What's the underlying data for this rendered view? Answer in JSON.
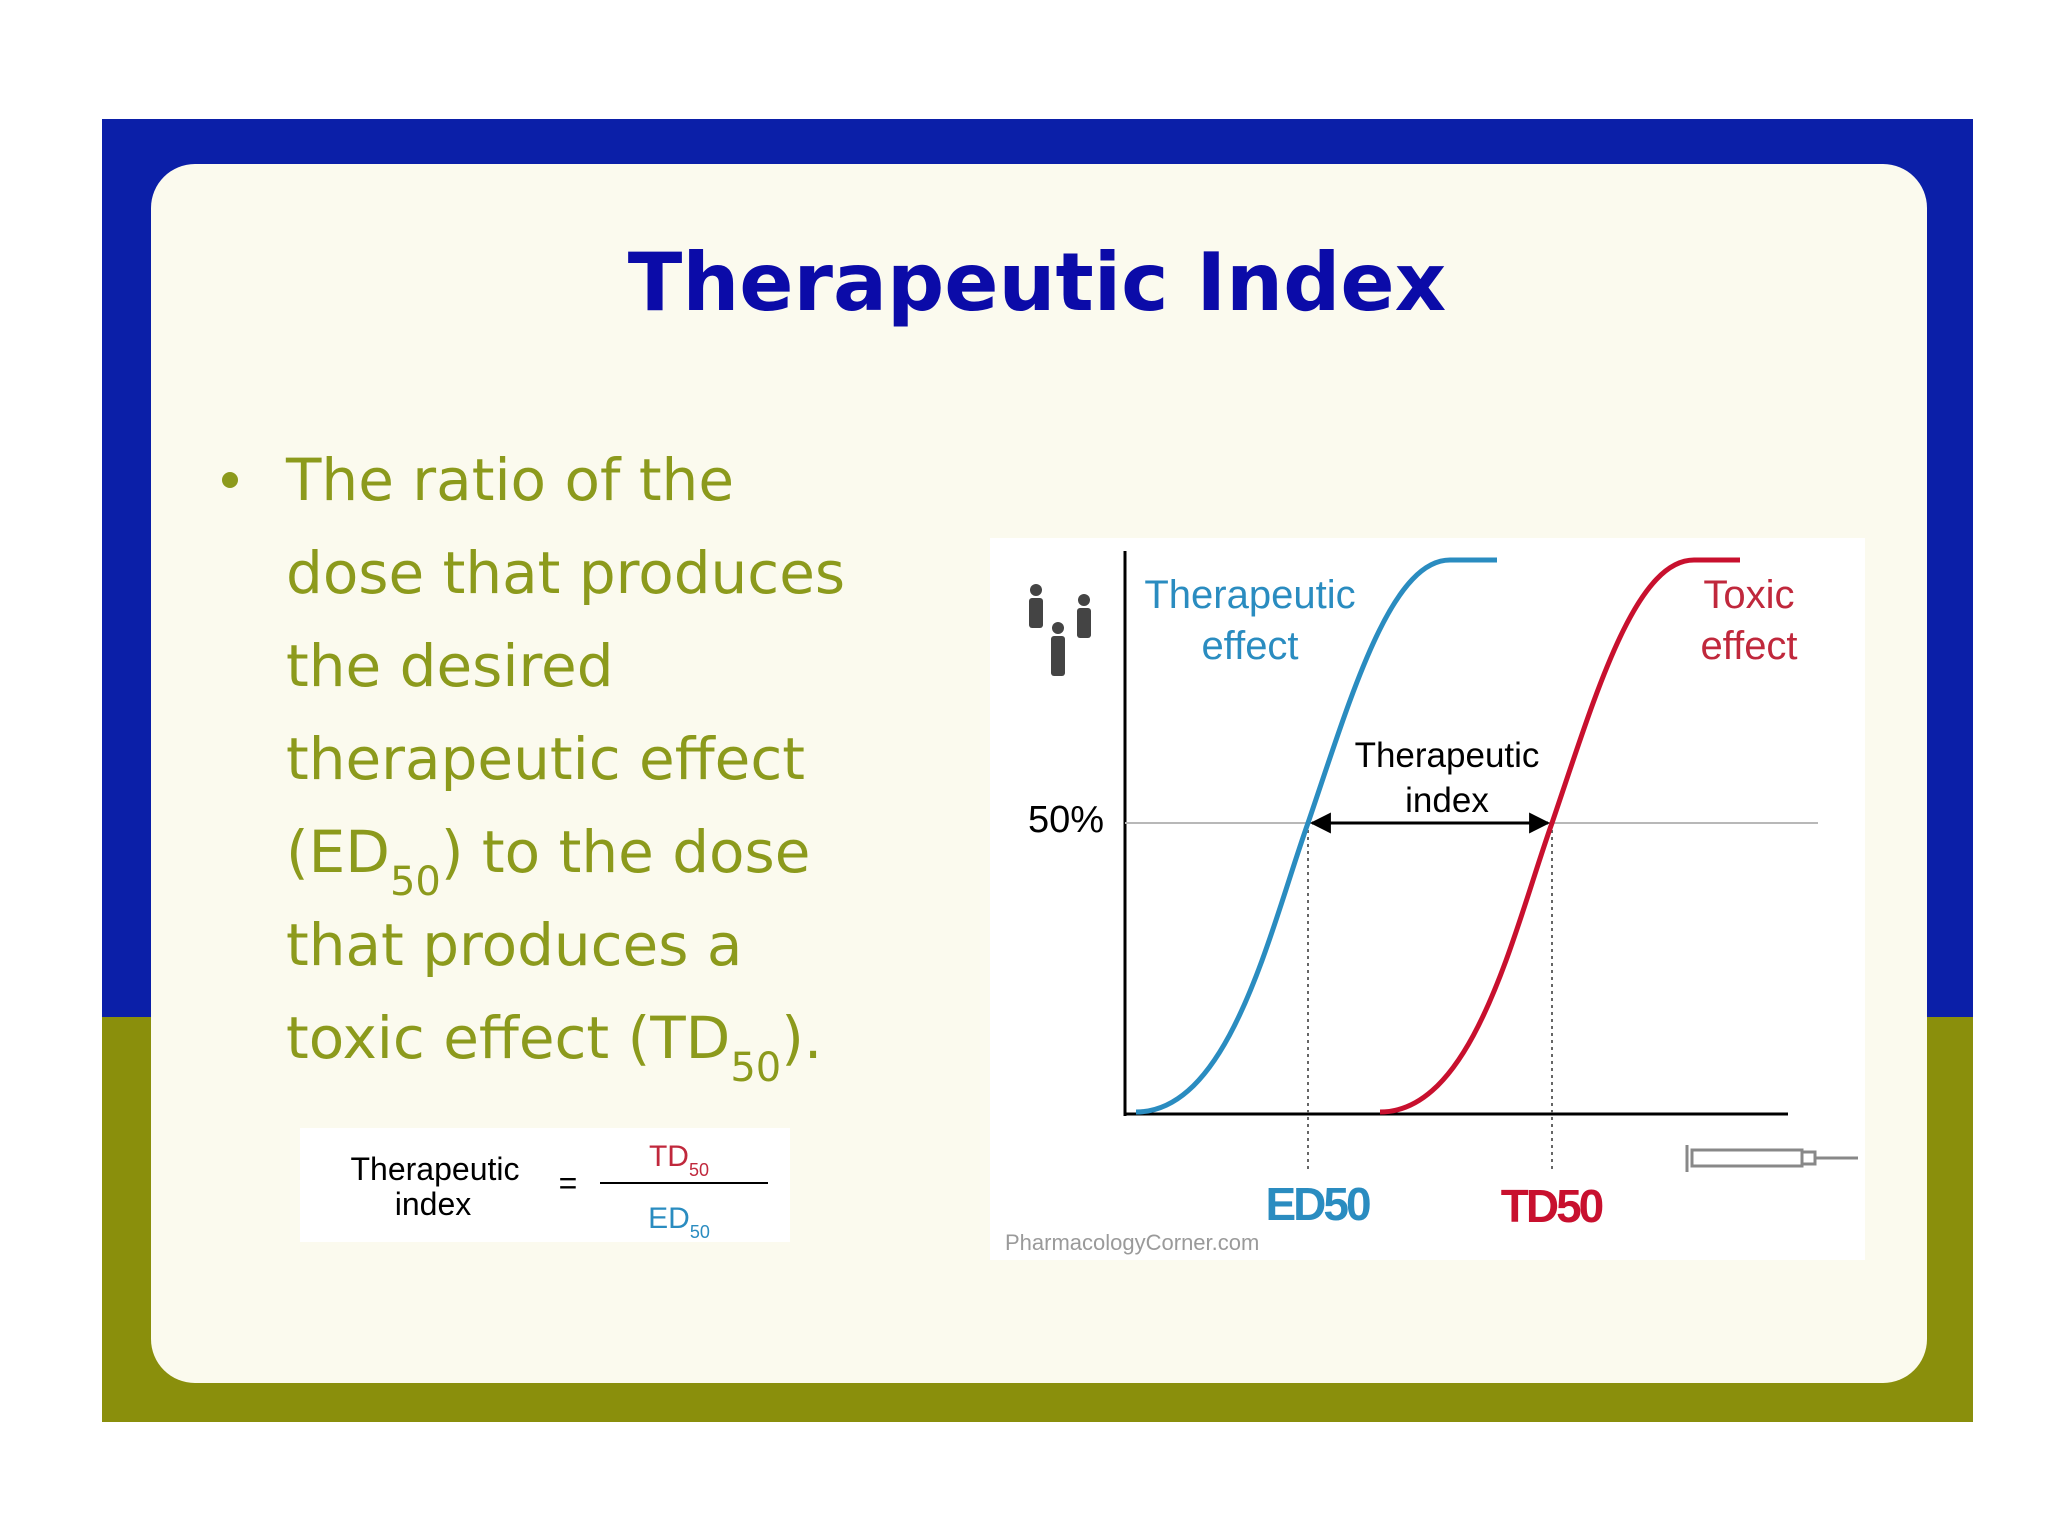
{
  "title": "Therapeutic Index",
  "bullet": {
    "lines": [
      [
        "The ratio of the"
      ],
      [
        "dose that produces"
      ],
      [
        "the desired"
      ],
      [
        "therapeutic effect"
      ],
      [
        "(ED",
        "50",
        ") to the dose"
      ],
      [
        "that produces a"
      ],
      [
        "toxic effect  (TD",
        "50",
        ")."
      ]
    ]
  },
  "formula": {
    "label": [
      "Therapeutic",
      "index"
    ],
    "equals": "=",
    "numerator": [
      "TD",
      "50"
    ],
    "denominator": [
      "ED",
      "50"
    ]
  },
  "figure": {
    "therapeutic_curve": [
      "Therapeutic",
      "effect"
    ],
    "toxic_curve": [
      "Toxic",
      "effect"
    ],
    "level": "50%",
    "interval": [
      "Therapeutic",
      "index"
    ],
    "ed50": "ED50",
    "td50": "TD50",
    "credit": "PharmacologyCorner.com"
  }
}
